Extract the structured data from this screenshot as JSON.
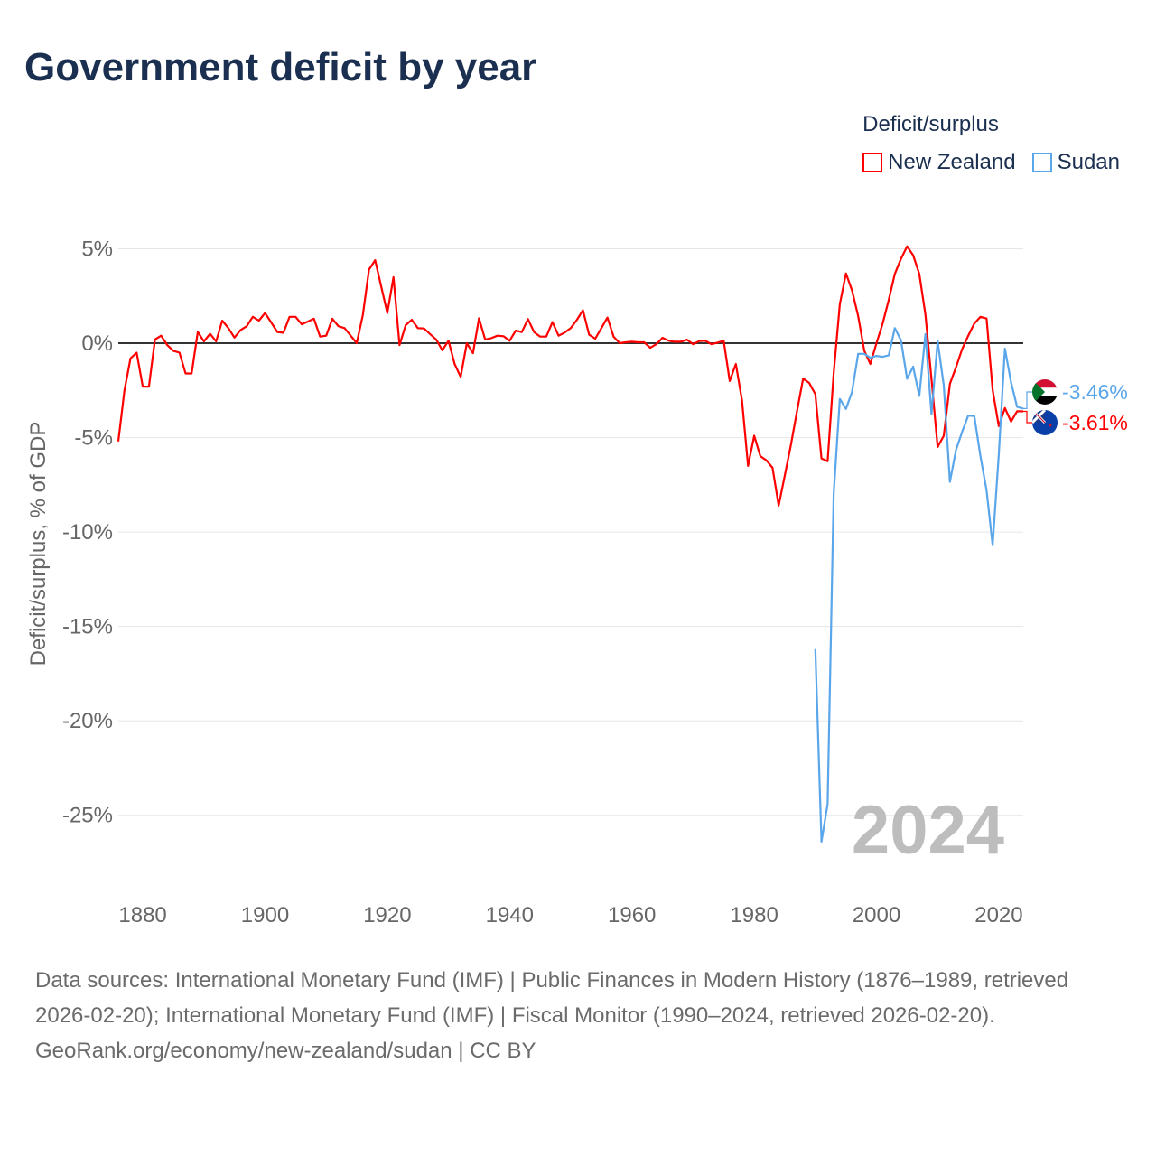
{
  "title": "Government deficit by year",
  "legend": {
    "title": "Deficit/surplus",
    "items": [
      {
        "label": "New Zealand",
        "color": "#ff0000"
      },
      {
        "label": "Sudan",
        "color": "#5aa6ea"
      }
    ]
  },
  "chart_data": {
    "type": "line",
    "title": "Government deficit by year",
    "xlabel": "",
    "ylabel": "Deficit/surplus, % of GDP",
    "xlim": [
      1876,
      2024
    ],
    "ylim": [
      -27.5,
      6
    ],
    "grid": true,
    "legend_position": "top-right",
    "x_ticks": [
      {
        "value": 1880,
        "label": "1880"
      },
      {
        "value": 1900,
        "label": "1900"
      },
      {
        "value": 1920,
        "label": "1920"
      },
      {
        "value": 1940,
        "label": "1940"
      },
      {
        "value": 1960,
        "label": "1960"
      },
      {
        "value": 1980,
        "label": "1980"
      },
      {
        "value": 2000,
        "label": "2000"
      },
      {
        "value": 2020,
        "label": "2020"
      }
    ],
    "y_ticks": [
      {
        "value": 5,
        "label": "5%"
      },
      {
        "value": 0,
        "label": "0%"
      },
      {
        "value": -5,
        "label": "-5%"
      },
      {
        "value": -10,
        "label": "-10%"
      },
      {
        "value": -15,
        "label": "-15%"
      },
      {
        "value": -20,
        "label": "-20%"
      },
      {
        "value": -25,
        "label": "-25%"
      }
    ],
    "watermark_year": "2024",
    "series": [
      {
        "name": "New Zealand",
        "color": "#ff0000",
        "start_year": 1876,
        "end_label": "-3.61%",
        "flag": "new-zealand",
        "values": [
          -5.2,
          -2.5,
          -0.8,
          -0.5,
          -2.3,
          -2.3,
          0.2,
          0.4,
          -0.1,
          -0.4,
          -0.5,
          -1.6,
          -1.6,
          0.6,
          0.1,
          0.5,
          0.1,
          1.2,
          0.8,
          0.3,
          0.7,
          0.9,
          1.4,
          1.2,
          1.6,
          1.1,
          0.6,
          0.55,
          1.4,
          1.4,
          1.0,
          1.15,
          1.3,
          0.35,
          0.4,
          1.3,
          0.9,
          0.8,
          0.4,
          0.0,
          1.5,
          3.9,
          4.4,
          3.0,
          1.6,
          3.5,
          -0.1,
          0.96,
          1.24,
          0.8,
          0.78,
          0.48,
          0.19,
          -0.37,
          0.13,
          -1.1,
          -1.78,
          0.0,
          -0.53,
          1.32,
          0.2,
          0.27,
          0.4,
          0.37,
          0.13,
          0.67,
          0.59,
          1.28,
          0.59,
          0.35,
          0.35,
          1.12,
          0.4,
          0.56,
          0.8,
          1.24,
          1.75,
          0.45,
          0.24,
          0.8,
          1.36,
          0.35,
          0.0,
          0.05,
          0.08,
          0.05,
          0.05,
          -0.24,
          -0.05,
          0.29,
          0.13,
          0.08,
          0.08,
          0.19,
          -0.05,
          0.11,
          0.13,
          -0.05,
          0.03,
          0.13,
          -2.0,
          -1.1,
          -3.03,
          -6.5,
          -4.9,
          -5.98,
          -6.2,
          -6.6,
          -8.6,
          -7.0,
          -5.4,
          -3.6,
          -1.87,
          -2.1,
          -2.7,
          -6.1,
          -6.25,
          -1.6,
          2.07,
          3.7,
          2.8,
          1.44,
          -0.4,
          -1.1,
          0.0,
          1.04,
          2.3,
          3.67,
          4.47,
          5.13,
          4.66,
          3.67,
          1.52,
          -1.9,
          -5.5,
          -4.9,
          -2.15,
          -1.28,
          -0.32,
          0.4,
          1.04,
          1.4,
          1.31,
          -2.47,
          -4.39,
          -3.43,
          -4.15,
          -3.6,
          -3.61
        ]
      },
      {
        "name": "Sudan",
        "color": "#5aa6ea",
        "start_year": 1990,
        "end_label": "-3.46%",
        "flag": "sudan",
        "values": [
          -16.2,
          -26.4,
          -24.4,
          -8.0,
          -2.95,
          -3.48,
          -2.58,
          -0.56,
          -0.56,
          -0.77,
          -0.67,
          -0.72,
          -0.64,
          0.8,
          0.16,
          -1.88,
          -1.24,
          -2.79,
          0.48,
          -3.75,
          0.11,
          -2.23,
          -7.34,
          -5.66,
          -4.7,
          -3.83,
          -3.86,
          -5.98,
          -7.8,
          -10.7,
          -5.9,
          -0.29,
          -2.07,
          -3.37,
          -3.46
        ]
      }
    ]
  },
  "footer": {
    "sources": "Data sources: International Monetary Fund (IMF) | Public Finances in Modern History (1876–1989, retrieved 2026-02-20); International Monetary Fund (IMF) | Fiscal Monitor (1990–2024, retrieved 2026-02-20).",
    "link": "GeoRank.org/economy/new-zealand/sudan",
    "license": " | CC BY"
  }
}
